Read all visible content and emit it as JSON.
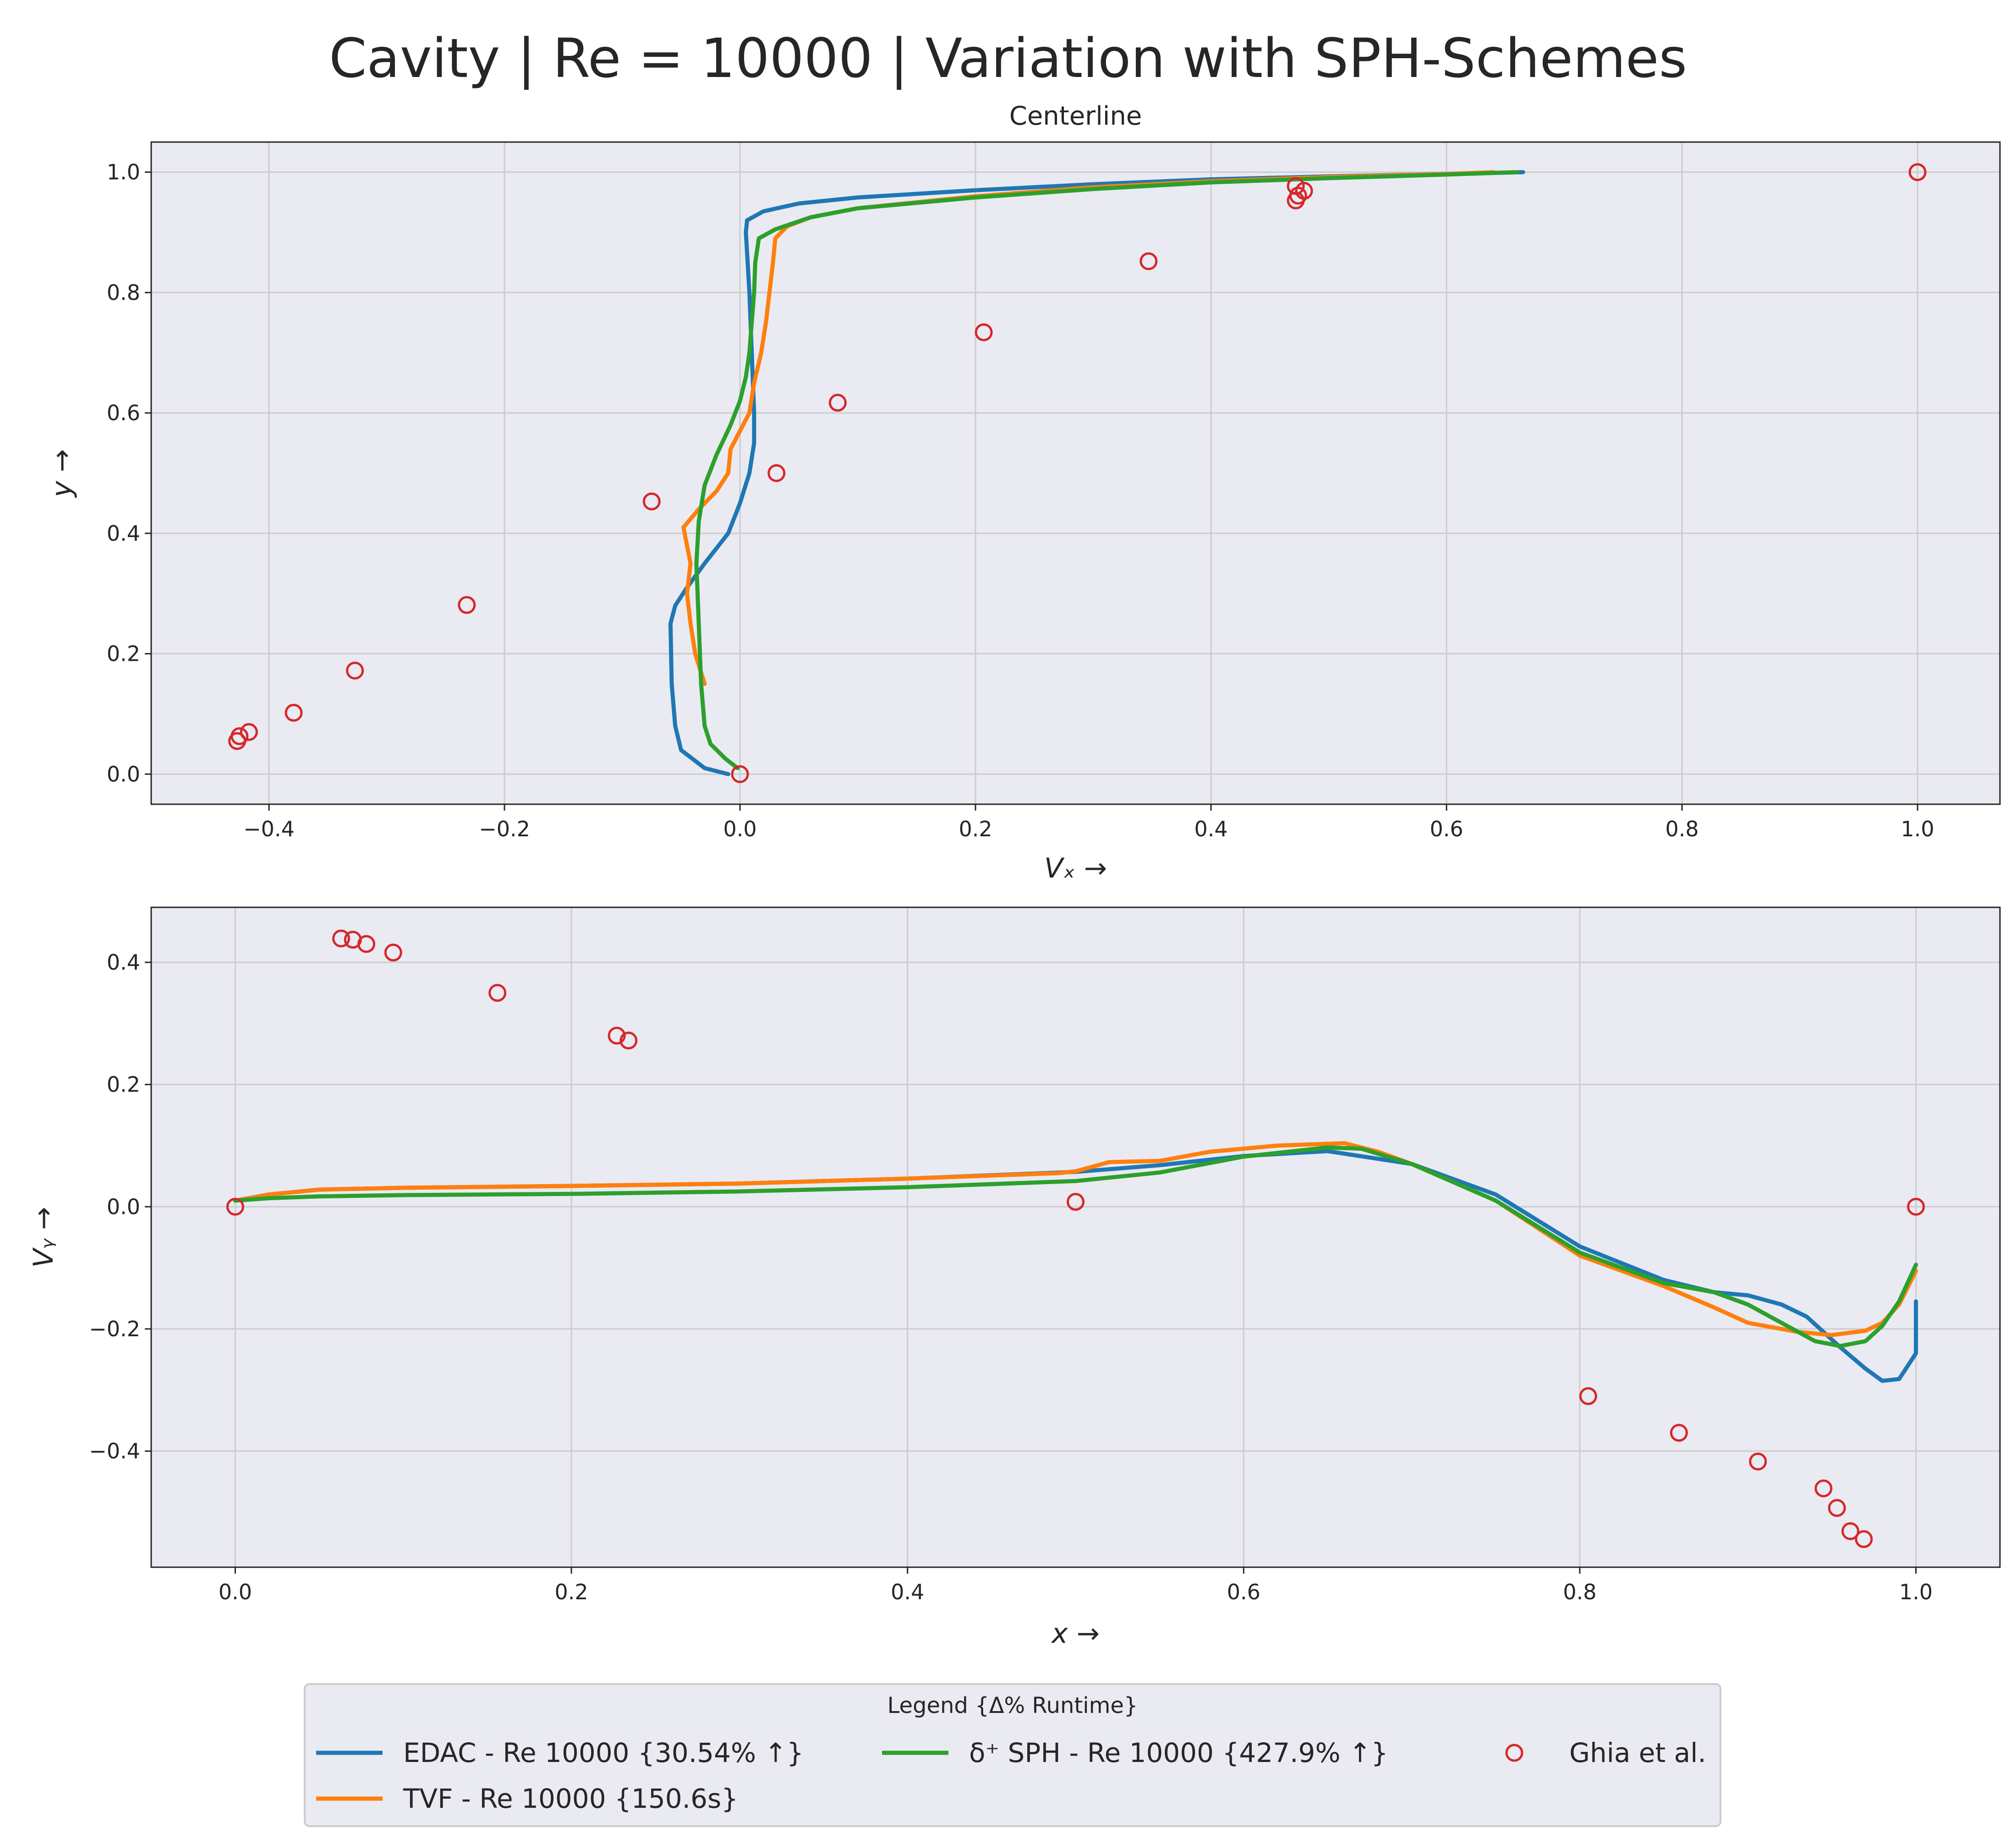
{
  "figure": {
    "suptitle": "Cavity | Re = 10000 | Variation with SPH-Schemes",
    "colors": {
      "background": "#eaeaf2",
      "grid": "#cccccc",
      "edac": "#1f77b4",
      "tvf": "#ff7f0e",
      "dsph": "#2ca02c",
      "ghia": "#d62728"
    }
  },
  "legend": {
    "title": "Legend {Δ% Runtime}",
    "entries": [
      {
        "label": "EDAC - Re 10000 {30.54% ↑}",
        "marker": "line",
        "color": "#1f77b4"
      },
      {
        "label": "TVF - Re 10000 {150.6s}",
        "marker": "line",
        "color": "#ff7f0e"
      },
      {
        "label": "δ⁺ SPH - Re 10000 {427.9% ↑}",
        "marker": "line",
        "color": "#2ca02c"
      },
      {
        "label": "Ghia et al.",
        "marker": "circle",
        "color": "#d62728"
      }
    ]
  },
  "chart_data": [
    {
      "type": "line",
      "title": "Centerline",
      "xlabel": "Vₓ →",
      "ylabel": "y →",
      "xlim": [
        -0.5,
        1.07
      ],
      "ylim": [
        -0.05,
        1.05
      ],
      "xticks": [
        -0.4,
        -0.2,
        0.0,
        0.2,
        0.4,
        0.6,
        0.8,
        1.0
      ],
      "xtick_labels": [
        "−0.4",
        "−0.2",
        "0.0",
        "0.2",
        "0.4",
        "0.6",
        "0.8",
        "1.0"
      ],
      "yticks": [
        0.0,
        0.2,
        0.4,
        0.6,
        0.8,
        1.0
      ],
      "ytick_labels": [
        "0.0",
        "0.2",
        "0.4",
        "0.6",
        "0.8",
        "1.0"
      ],
      "grid": true,
      "series": [
        {
          "name": "EDAC - Re 10000 {30.54% ↑}",
          "color": "#1f77b4",
          "points": [
            [
              -0.01,
              0.0
            ],
            [
              -0.03,
              0.01
            ],
            [
              -0.05,
              0.04
            ],
            [
              -0.055,
              0.08
            ],
            [
              -0.058,
              0.15
            ],
            [
              -0.059,
              0.25
            ],
            [
              -0.055,
              0.28
            ],
            [
              -0.045,
              0.31
            ],
            [
              -0.03,
              0.35
            ],
            [
              -0.01,
              0.4
            ],
            [
              0.0,
              0.45
            ],
            [
              0.008,
              0.5
            ],
            [
              0.012,
              0.55
            ],
            [
              0.012,
              0.6
            ],
            [
              0.01,
              0.7
            ],
            [
              0.008,
              0.8
            ],
            [
              0.005,
              0.9
            ],
            [
              0.006,
              0.92
            ],
            [
              0.02,
              0.935
            ],
            [
              0.05,
              0.948
            ],
            [
              0.1,
              0.958
            ],
            [
              0.2,
              0.97
            ],
            [
              0.3,
              0.98
            ],
            [
              0.4,
              0.988
            ],
            [
              0.5,
              0.993
            ],
            [
              0.6,
              0.997
            ],
            [
              0.665,
              1.0
            ]
          ]
        },
        {
          "name": "TVF - Re 10000 {150.6s}",
          "color": "#ff7f0e",
          "points": [
            [
              -0.03,
              0.15
            ],
            [
              -0.038,
              0.2
            ],
            [
              -0.042,
              0.25
            ],
            [
              -0.045,
              0.3
            ],
            [
              -0.042,
              0.35
            ],
            [
              -0.045,
              0.38
            ],
            [
              -0.048,
              0.41
            ],
            [
              -0.035,
              0.44
            ],
            [
              -0.02,
              0.47
            ],
            [
              -0.01,
              0.5
            ],
            [
              -0.008,
              0.54
            ],
            [
              0.0,
              0.57
            ],
            [
              0.008,
              0.6
            ],
            [
              0.012,
              0.65
            ],
            [
              0.018,
              0.7
            ],
            [
              0.022,
              0.75
            ],
            [
              0.025,
              0.8
            ],
            [
              0.028,
              0.85
            ],
            [
              0.03,
              0.89
            ],
            [
              0.04,
              0.91
            ],
            [
              0.06,
              0.925
            ],
            [
              0.1,
              0.94
            ],
            [
              0.2,
              0.96
            ],
            [
              0.3,
              0.975
            ],
            [
              0.4,
              0.985
            ],
            [
              0.5,
              0.992
            ],
            [
              0.6,
              0.997
            ],
            [
              0.64,
              1.0
            ]
          ]
        },
        {
          "name": "δ⁺ SPH - Re 10000 {427.9% ↑}",
          "color": "#2ca02c",
          "points": [
            [
              -0.002,
              0.01
            ],
            [
              -0.012,
              0.025
            ],
            [
              -0.025,
              0.05
            ],
            [
              -0.03,
              0.08
            ],
            [
              -0.033,
              0.15
            ],
            [
              -0.035,
              0.25
            ],
            [
              -0.037,
              0.35
            ],
            [
              -0.035,
              0.42
            ],
            [
              -0.03,
              0.48
            ],
            [
              -0.02,
              0.53
            ],
            [
              -0.008,
              0.58
            ],
            [
              0.0,
              0.62
            ],
            [
              0.005,
              0.66
            ],
            [
              0.008,
              0.7
            ],
            [
              0.01,
              0.75
            ],
            [
              0.012,
              0.8
            ],
            [
              0.013,
              0.85
            ],
            [
              0.016,
              0.89
            ],
            [
              0.03,
              0.905
            ],
            [
              0.06,
              0.925
            ],
            [
              0.1,
              0.94
            ],
            [
              0.2,
              0.958
            ],
            [
              0.3,
              0.972
            ],
            [
              0.4,
              0.983
            ],
            [
              0.5,
              0.99
            ],
            [
              0.6,
              0.996
            ],
            [
              0.66,
              1.0
            ]
          ]
        },
        {
          "name": "Ghia et al.",
          "color": "#d62728",
          "marker": "circle",
          "points": [
            [
              0.0,
              0.0
            ],
            [
              -0.427,
              0.055
            ],
            [
              -0.425,
              0.063
            ],
            [
              -0.417,
              0.07
            ],
            [
              -0.379,
              0.102
            ],
            [
              -0.327,
              0.172
            ],
            [
              -0.232,
              0.281
            ],
            [
              -0.075,
              0.453
            ],
            [
              0.031,
              0.5
            ],
            [
              0.083,
              0.617
            ],
            [
              0.207,
              0.734
            ],
            [
              0.347,
              0.852
            ],
            [
              0.472,
              0.953
            ],
            [
              0.474,
              0.961
            ],
            [
              0.479,
              0.969
            ],
            [
              0.472,
              0.977
            ],
            [
              1.0,
              1.0
            ]
          ]
        }
      ]
    },
    {
      "type": "line",
      "title": "",
      "xlabel": "x →",
      "ylabel": "Vᵧ →",
      "xlim": [
        -0.05,
        1.05
      ],
      "ylim": [
        -0.59,
        0.49
      ],
      "xticks": [
        0.0,
        0.2,
        0.4,
        0.6,
        0.8,
        1.0
      ],
      "xtick_labels": [
        "0.0",
        "0.2",
        "0.4",
        "0.6",
        "0.8",
        "1.0"
      ],
      "yticks": [
        -0.4,
        -0.2,
        0.0,
        0.2,
        0.4
      ],
      "ytick_labels": [
        "−0.4",
        "−0.2",
        "0.0",
        "0.2",
        "0.4"
      ],
      "grid": true,
      "series": [
        {
          "name": "EDAC - Re 10000 {30.54% ↑}",
          "color": "#1f77b4",
          "points": [
            [
              0.0,
              0.01
            ],
            [
              0.02,
              0.02
            ],
            [
              0.05,
              0.028
            ],
            [
              0.1,
              0.031
            ],
            [
              0.2,
              0.034
            ],
            [
              0.3,
              0.038
            ],
            [
              0.4,
              0.046
            ],
            [
              0.5,
              0.057
            ],
            [
              0.55,
              0.068
            ],
            [
              0.6,
              0.083
            ],
            [
              0.65,
              0.091
            ],
            [
              0.7,
              0.07
            ],
            [
              0.75,
              0.02
            ],
            [
              0.8,
              -0.065
            ],
            [
              0.85,
              -0.12
            ],
            [
              0.88,
              -0.14
            ],
            [
              0.9,
              -0.145
            ],
            [
              0.92,
              -0.16
            ],
            [
              0.935,
              -0.18
            ],
            [
              0.955,
              -0.23
            ],
            [
              0.97,
              -0.265
            ],
            [
              0.98,
              -0.285
            ],
            [
              0.99,
              -0.282
            ],
            [
              1.0,
              -0.24
            ],
            [
              1.0,
              -0.155
            ]
          ]
        },
        {
          "name": "TVF - Re 10000 {150.6s}",
          "color": "#ff7f0e",
          "points": [
            [
              0.0,
              0.01
            ],
            [
              0.02,
              0.02
            ],
            [
              0.05,
              0.028
            ],
            [
              0.1,
              0.031
            ],
            [
              0.2,
              0.034
            ],
            [
              0.3,
              0.038
            ],
            [
              0.4,
              0.046
            ],
            [
              0.49,
              0.055
            ],
            [
              0.5,
              0.058
            ],
            [
              0.52,
              0.073
            ],
            [
              0.55,
              0.075
            ],
            [
              0.58,
              0.09
            ],
            [
              0.62,
              0.1
            ],
            [
              0.66,
              0.104
            ],
            [
              0.68,
              0.09
            ],
            [
              0.7,
              0.07
            ],
            [
              0.75,
              0.01
            ],
            [
              0.8,
              -0.08
            ],
            [
              0.85,
              -0.13
            ],
            [
              0.88,
              -0.165
            ],
            [
              0.9,
              -0.19
            ],
            [
              0.93,
              -0.205
            ],
            [
              0.95,
              -0.21
            ],
            [
              0.97,
              -0.203
            ],
            [
              0.98,
              -0.19
            ],
            [
              0.99,
              -0.16
            ],
            [
              1.0,
              -0.105
            ]
          ]
        },
        {
          "name": "δ⁺ SPH - Re 10000 {427.9% ↑}",
          "color": "#2ca02c",
          "points": [
            [
              0.0,
              0.01
            ],
            [
              0.02,
              0.014
            ],
            [
              0.05,
              0.017
            ],
            [
              0.1,
              0.019
            ],
            [
              0.2,
              0.021
            ],
            [
              0.3,
              0.025
            ],
            [
              0.4,
              0.032
            ],
            [
              0.5,
              0.042
            ],
            [
              0.55,
              0.056
            ],
            [
              0.6,
              0.082
            ],
            [
              0.65,
              0.097
            ],
            [
              0.67,
              0.095
            ],
            [
              0.7,
              0.07
            ],
            [
              0.75,
              0.01
            ],
            [
              0.8,
              -0.075
            ],
            [
              0.85,
              -0.125
            ],
            [
              0.88,
              -0.14
            ],
            [
              0.9,
              -0.16
            ],
            [
              0.92,
              -0.19
            ],
            [
              0.94,
              -0.22
            ],
            [
              0.955,
              -0.228
            ],
            [
              0.97,
              -0.22
            ],
            [
              0.98,
              -0.195
            ],
            [
              0.99,
              -0.155
            ],
            [
              1.0,
              -0.095
            ]
          ]
        },
        {
          "name": "Ghia et al.",
          "color": "#d62728",
          "marker": "circle",
          "points": [
            [
              0.0,
              0.0
            ],
            [
              0.063,
              0.439
            ],
            [
              0.07,
              0.437
            ],
            [
              0.078,
              0.43
            ],
            [
              0.094,
              0.416
            ],
            [
              0.156,
              0.35
            ],
            [
              0.227,
              0.28
            ],
            [
              0.234,
              0.272
            ],
            [
              0.5,
              0.008
            ],
            [
              0.805,
              -0.31
            ],
            [
              0.859,
              -0.37
            ],
            [
              0.906,
              -0.417
            ],
            [
              0.945,
              -0.461
            ],
            [
              0.953,
              -0.493
            ],
            [
              0.961,
              -0.531
            ],
            [
              0.969,
              -0.544
            ],
            [
              1.0,
              0.0
            ]
          ]
        }
      ]
    }
  ]
}
